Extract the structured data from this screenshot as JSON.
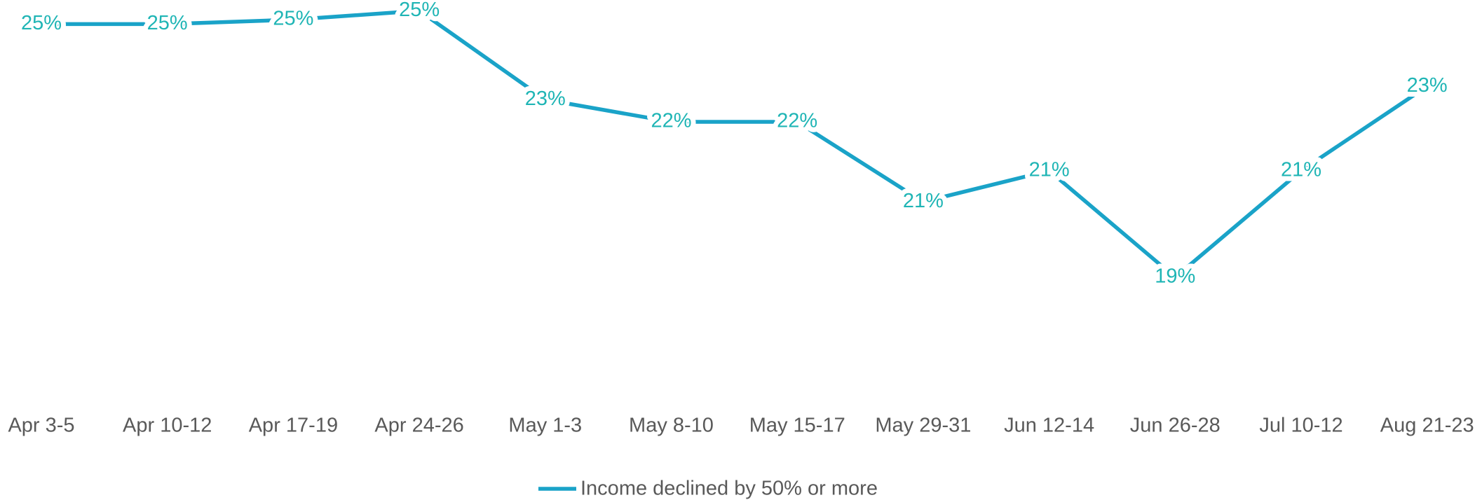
{
  "chart_data": {
    "type": "line",
    "categories": [
      "Apr 3-5",
      "Apr 10-12",
      "Apr 17-19",
      "Apr 24-26",
      "May 1-3",
      "May 8-10",
      "May 15-17",
      "May 29-31",
      "Jun 12-14",
      "Jun 26-28",
      "Jul 10-12",
      "Aug 21-23"
    ],
    "series": [
      {
        "name": "Income declined by 50% or more",
        "color": "#1aa3c8",
        "label_color": "#1fb5b5",
        "values": [
          24.6,
          24.6,
          24.7,
          24.9,
          22.9,
          22.4,
          22.4,
          20.6,
          21.3,
          18.9,
          21.3,
          23.2
        ],
        "value_labels": [
          "25%",
          "25%",
          "25%",
          "25%",
          "23%",
          "22%",
          "22%",
          "21%",
          "21%",
          "19%",
          "21%",
          "23%"
        ]
      }
    ],
    "ylim": [
      16,
      25
    ],
    "legend": "bottom"
  }
}
